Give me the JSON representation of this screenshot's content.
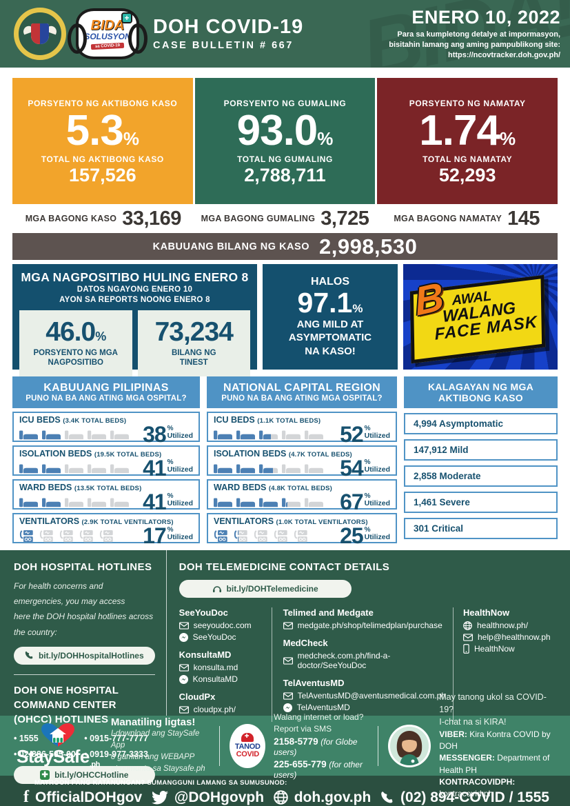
{
  "colors": {
    "header_green": "#3A6854",
    "section_green": "#2F5B49",
    "strip_green": "#3F8368",
    "footer_green": "#2B4F40",
    "active_orange": "#F2A42B",
    "recovered_green": "#2E6C57",
    "died_maroon": "#7B2427",
    "total_taupe": "#5D5350",
    "navy_panel": "#14506E",
    "hospital_blue": "#4F93C5",
    "bed_fill_blue": "#4C80B4",
    "bed_empty_gray": "#D3D5D7",
    "sign_yellow": "#F2D814",
    "sign_blue": "#1641C9",
    "sign_b_orange": "#F07818"
  },
  "header": {
    "title": "DOH COVID-19",
    "subtitle": "CASE BULLETIN # 667",
    "date": "ENERO 10, 2022",
    "note_lines": [
      "Para sa kumpletong detalye at impormasyon,",
      "bisitahin lamang ang aming pampublikong site:",
      "https://ncovtracker.doh.gov.ph/"
    ]
  },
  "stat_cards": [
    {
      "label": "PORSYENTO NG AKTIBONG KASO",
      "pct": "5.3",
      "unit": "%",
      "total_label": "TOTAL NG AKTIBONG KASO",
      "total": "157,526",
      "color": "#F2A42B"
    },
    {
      "label": "PORSYENTO NG GUMALING",
      "pct": "93.0",
      "unit": "%",
      "total_label": "TOTAL NG GUMALING",
      "total": "2,788,711",
      "color": "#2E6C57"
    },
    {
      "label": "PORSYENTO NG NAMATAY",
      "pct": "1.74",
      "unit": "%",
      "total_label": "TOTAL NG NAMATAY",
      "total": "52,293",
      "color": "#7B2427"
    }
  ],
  "new_row": [
    {
      "label": "MGA BAGONG KASO",
      "value": "33,169"
    },
    {
      "label": "MGA BAGONG GUMALING",
      "value": "3,725"
    },
    {
      "label": "MGA BAGONG NAMATAY",
      "value": "145"
    }
  ],
  "total_bar": {
    "label": "KABUUANG BILANG NG KASO",
    "value": "2,998,530"
  },
  "positivity": {
    "title": "MGA NAGPOSITIBO HULING ENERO 8",
    "subtitle1": "DATOS NGAYONG ENERO 10",
    "subtitle2": "AYON SA REPORTS NOONG ENERO 8",
    "pct": "46.0",
    "pct_unit": "%",
    "pct_label1": "PORSYENTO NG MGA",
    "pct_label2": "NAGPOSITIBO",
    "tests": "73,234",
    "tests_label1": "BILANG NG",
    "tests_label2": "TINEST"
  },
  "mild_panel": {
    "intro": "HALOS",
    "pct": "97.1",
    "unit": "%",
    "line1": "ANG MILD AT",
    "line2": "ASYMPTOMATIC",
    "line3": "NA KASO!"
  },
  "mask_sign": {
    "big_letter": "B",
    "line1": "AWAL",
    "line2": "WALANG",
    "line3": "FACE MASK"
  },
  "hospitals": {
    "unit": "%",
    "utilized_label": "Utilized",
    "columns": [
      {
        "title": "KABUUANG PILIPINAS",
        "subtitle": "PUNO NA BA ANG ATING MGA OSPITAL?",
        "rows": [
          {
            "name": "ICU BEDS",
            "capacity": "(3.4K TOTAL BEDS)",
            "pct": 38
          },
          {
            "name": "ISOLATION BEDS",
            "capacity": "(19.5K TOTAL BEDS)",
            "pct": 41
          },
          {
            "name": "WARD BEDS",
            "capacity": "(13.5K TOTAL BEDS)",
            "pct": 41
          },
          {
            "name": "VENTILATORS",
            "capacity": "(2.9K TOTAL VENTILATORS)",
            "pct": 17
          }
        ]
      },
      {
        "title": "NATIONAL CAPITAL REGION",
        "subtitle": "PUNO NA BA ANG ATING MGA OSPITAL?",
        "rows": [
          {
            "name": "ICU BEDS",
            "capacity": "(1.1K TOTAL BEDS)",
            "pct": 52
          },
          {
            "name": "ISOLATION BEDS",
            "capacity": "(4.7K TOTAL BEDS)",
            "pct": 54
          },
          {
            "name": "WARD BEDS",
            "capacity": "(4.8K TOTAL BEDS)",
            "pct": 67
          },
          {
            "name": "VENTILATORS",
            "capacity": "(1.0K TOTAL VENTILATORS)",
            "pct": 25
          }
        ]
      }
    ]
  },
  "active_breakdown": {
    "title1": "KALAGAYAN NG MGA",
    "title2": "AKTIBONG KASO",
    "items": [
      "4,994 Asymptomatic",
      "147,912 Mild",
      "2,858 Moderate",
      "1,461 Severe",
      "301 Critical"
    ]
  },
  "hotlines": {
    "title": "DOH HOSPITAL HOTLINES",
    "desc1": "For health concerns and emergencies, you may access",
    "desc2": "here the DOH hospital hotlines across the country:",
    "link1": "bit.ly/DOHHospitalHotlines",
    "ohcc_title": "DOH ONE HOSPITAL COMMAND CENTER (OHCC) HOTLINES",
    "numbers": [
      "1555",
      "0915-777-7777",
      "02-886-505-00",
      "0919-977-3333"
    ],
    "link2": "bit.ly/OHCCHotline"
  },
  "telemedicine": {
    "title": "DOH TELEMEDICINE CONTACT DETAILS",
    "link": "bit.ly/DOHTelemedicine",
    "seeyoudoc": {
      "name": "SeeYouDoc",
      "web": "seeyoudoc.com",
      "messenger": "SeeYouDoc"
    },
    "konsultamd": {
      "name": "KonsultaMD",
      "web": "konsulta.md",
      "messenger": "KonsultaMD"
    },
    "cloudpx": {
      "name": "CloudPx",
      "web": "cloudpx.ph/"
    },
    "telimed": {
      "name": "Telimed and Medgate",
      "web": "medgate.ph/shop/telimedplan/purchase"
    },
    "medcheck": {
      "name": "MedCheck",
      "web": "medcheck.com.ph/find-a-doctor/SeeYouDoc"
    },
    "telaventus": {
      "name": "TelAventusMD",
      "web": "TelAventusMD@aventusmedical.com.ph",
      "messenger": "TelAventusMD"
    },
    "healthnow": {
      "name": "HealthNow",
      "web": "healthnow.ph/",
      "email": "help@healthnow.ph",
      "app": "HealthNow"
    }
  },
  "staysafe": {
    "brand": "StaySafe",
    "brand_suffix": ".ph",
    "headline": "Manatiling ligtas!",
    "line1": "I-download ang StaySafe App",
    "line2": "o gamitin ang WEBAPP",
    "line3": "at pumunta sa Staysafe.ph"
  },
  "tanod": {
    "logo_line1": "TANOD",
    "logo_line2": "COVID",
    "q1": "Walang internet or load?",
    "q2": "Report via SMS",
    "sms1": "2158-5779",
    "sms1_note": "(for Globe users)",
    "sms2": "225-655-779",
    "sms2_note": "(for other users)"
  },
  "kira": {
    "q1": "May tanong ukol sa COVID-19?",
    "q2": "I-chat na si KIRA!",
    "viber_label": "VIBER:",
    "viber": "Kira Kontra COVID by DOH",
    "messenger_label": "MESSENGER:",
    "messenger": "Department of Health PH",
    "kontra_label": "KONTRACOVIDPH:",
    "kontra": "kontracovid.ph"
  },
  "footer": {
    "note": "MAYROON PANG KATANUNGAN? SUMANGGUNI LAMANG SA SUMUSUNOD:",
    "facebook": "OfficialDOHgov",
    "twitter": "@DOHgovph",
    "website": "doh.gov.ph",
    "phone": "(02) 894-COVID / 1555"
  }
}
